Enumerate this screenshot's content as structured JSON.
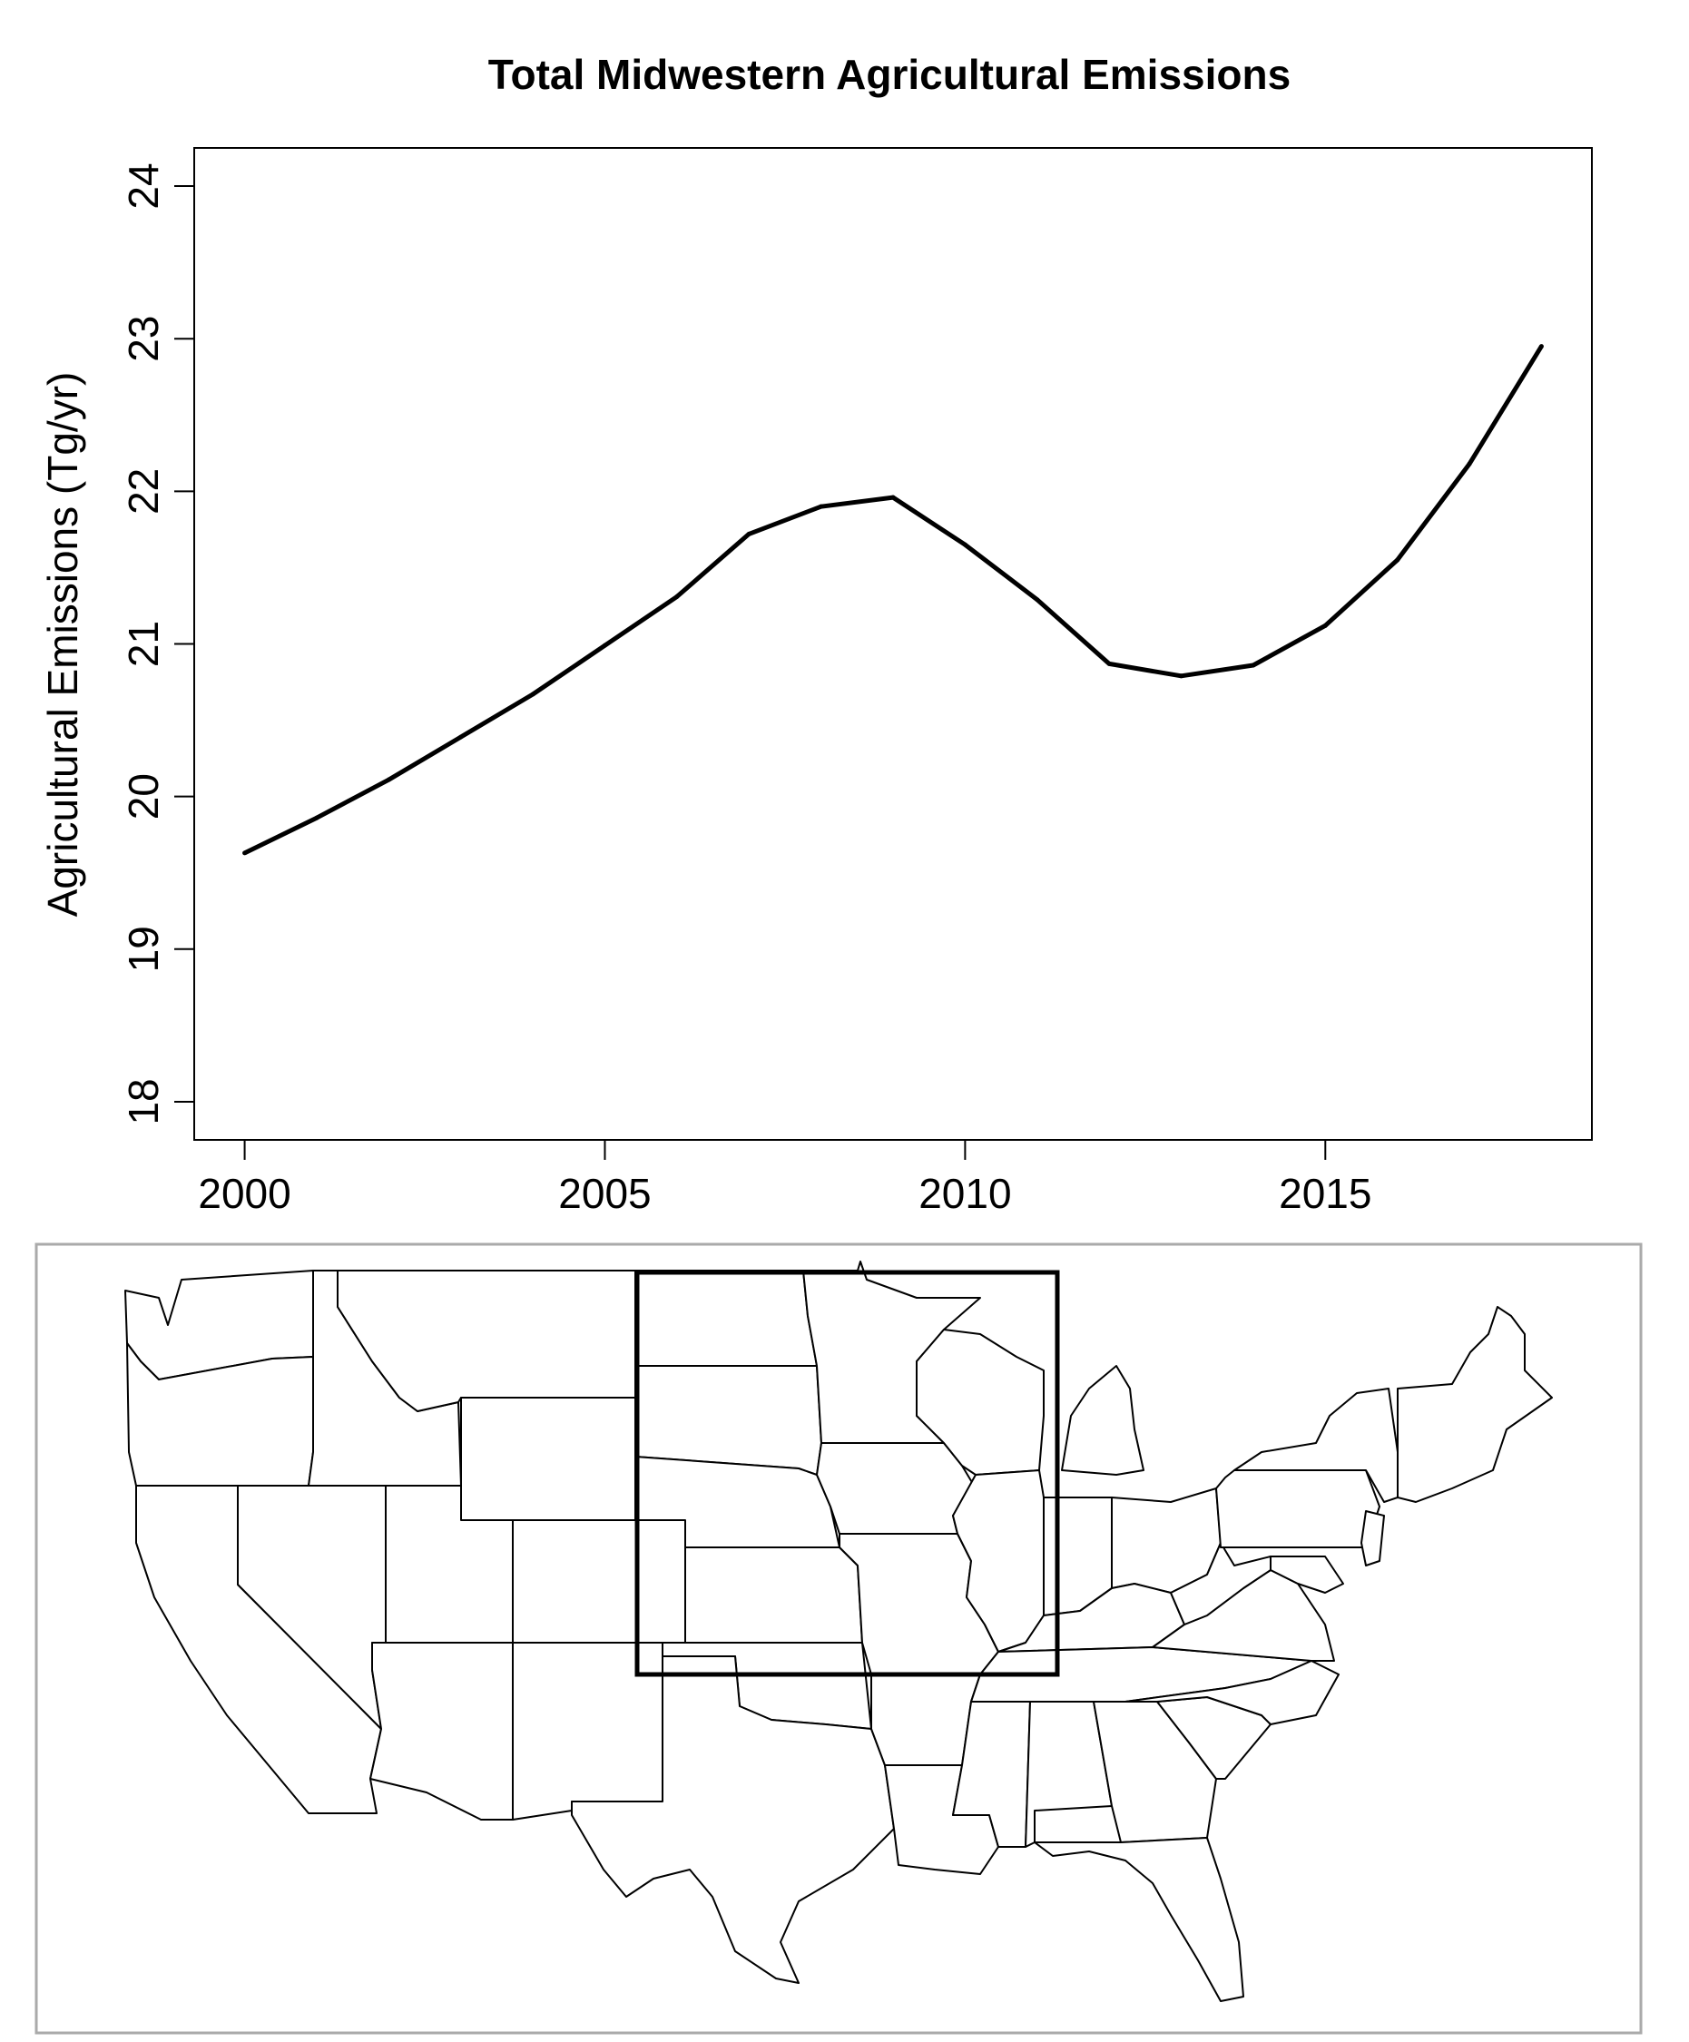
{
  "chart_data": {
    "type": "line",
    "title": "Total Midwestern Agricultural Emissions",
    "xlabel": "",
    "ylabel": "Agricultural Emissions (Tg/yr)",
    "xlim": [
      1999.3,
      2018.7
    ],
    "ylim": [
      17.75,
      24.25
    ],
    "x_ticks": [
      2000,
      2005,
      2010,
      2015
    ],
    "y_ticks": [
      18,
      19,
      20,
      21,
      22,
      23,
      24
    ],
    "grid": false,
    "legend": "none",
    "series": [
      {
        "x": [
          2000,
          2001,
          2002,
          2003,
          2004,
          2005,
          2006,
          2007,
          2008,
          2009,
          2010,
          2011,
          2012,
          2013,
          2014,
          2015,
          2016,
          2017,
          2018
        ],
        "y": [
          19.63,
          19.86,
          20.11,
          20.39,
          20.67,
          20.99,
          21.31,
          21.72,
          21.9,
          21.96,
          21.65,
          21.29,
          20.87,
          20.79,
          20.86,
          21.12,
          21.55,
          22.18,
          22.95
        ],
        "color": "#000000"
      }
    ]
  },
  "inset_map": {
    "description_free": true,
    "highlight_box_color": "#000000"
  }
}
